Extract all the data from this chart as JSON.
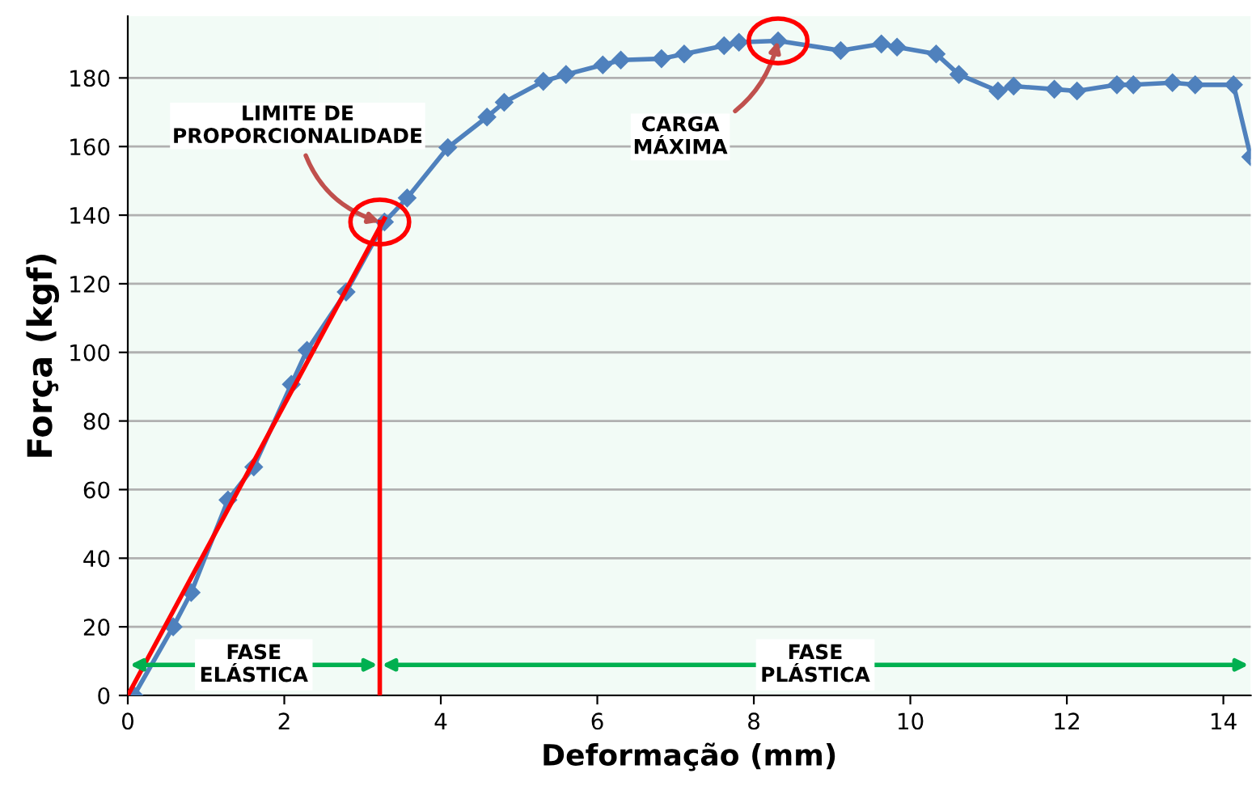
{
  "chart_data": {
    "type": "line",
    "xlabel": "Deformação (mm)",
    "ylabel": "Força (kgf)",
    "series": [
      {
        "color": "#4f81bd",
        "marker": "diamond",
        "x": [
          0.08,
          0.58,
          0.81,
          1.28,
          1.61,
          2.09,
          2.29,
          2.79,
          3.28,
          3.57,
          4.09,
          4.59,
          4.81,
          5.31,
          5.6,
          6.07,
          6.3,
          6.82,
          7.11,
          7.62,
          7.81,
          8.31,
          9.11,
          9.63,
          9.83,
          10.33,
          10.62,
          11.12,
          11.32,
          11.84,
          12.13,
          12.64,
          12.85,
          13.35,
          13.64,
          14.13,
          14.35
        ],
        "values": [
          0,
          20,
          30,
          57,
          66.6,
          90.7,
          100.6,
          117.6,
          138,
          145,
          159.7,
          168.6,
          172.9,
          179,
          181,
          183.8,
          185.2,
          185.6,
          187,
          189.4,
          190.4,
          190.8,
          188,
          189.9,
          189,
          187,
          181,
          176.2,
          177.6,
          176.7,
          176.2,
          178,
          178,
          178.6,
          178,
          178,
          157
        ]
      },
      {
        "type": "line",
        "color": "#ff0000",
        "x": [
          0,
          3.28
        ],
        "values": [
          0,
          139
        ]
      },
      {
        "type": "line",
        "color": "#ff0000",
        "x": [
          3.22,
          3.22
        ],
        "values": [
          0,
          138
        ]
      }
    ],
    "bands": [
      {
        "axis": "x",
        "from": 0,
        "to": 3.22,
        "label": "FASE\nELÁSTICA",
        "color": "#00b050"
      },
      {
        "axis": "x",
        "from": 3.22,
        "to": 14.35,
        "label": "FASE\nPLÁSTICA",
        "color": "#00b050"
      }
    ],
    "annotations": [
      {
        "text": "LIMITE DE\nPROPORCIONALIDADE",
        "x": 3.22,
        "y": 138
      },
      {
        "text": "CARGA\nMÁXIMA",
        "x": 8.31,
        "y": 190.8
      }
    ],
    "xlim": [
      0,
      14.35
    ],
    "ylim": [
      0,
      198
    ],
    "xticks": [
      0,
      2,
      4,
      6,
      8,
      10,
      12,
      14
    ],
    "yticks": [
      0,
      20,
      40,
      60,
      80,
      100,
      120,
      140,
      160,
      180
    ],
    "grid": "y"
  }
}
